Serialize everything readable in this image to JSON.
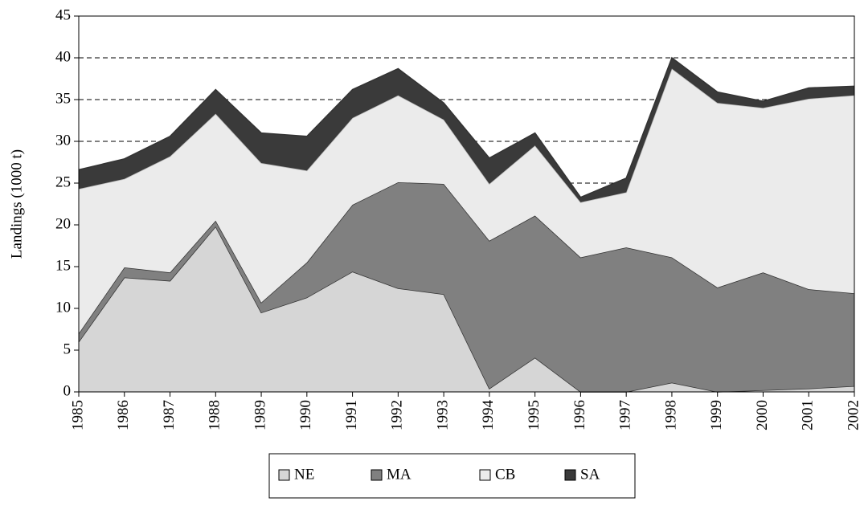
{
  "chart_data": {
    "type": "stacked_area",
    "y_axis_label": "Landings (1000 t)",
    "categories": [
      "1985",
      "1986",
      "1987",
      "1988",
      "1989",
      "1990",
      "1991",
      "1992",
      "1993",
      "1994",
      "1995",
      "1996",
      "1997",
      "1998",
      "1999",
      "2000",
      "2001",
      "2002"
    ],
    "series": [
      {
        "name": "NE",
        "color": "#d6d6d6",
        "values": [
          6.0,
          13.7,
          13.3,
          19.8,
          9.5,
          11.3,
          14.4,
          12.4,
          11.7,
          0.4,
          4.1,
          0,
          0,
          1.1,
          0,
          0.2,
          0.4,
          0.7
        ]
      },
      {
        "name": "MA",
        "color": "#808080",
        "values": [
          1.0,
          1.2,
          1.0,
          0.7,
          1.2,
          4.2,
          8.0,
          12.7,
          13.2,
          17.7,
          17.0,
          16.1,
          17.3,
          15.0,
          12.5,
          14.1,
          11.9,
          11.1
        ]
      },
      {
        "name": "CB",
        "color": "#ebebeb",
        "values": [
          17.3,
          10.6,
          13.9,
          12.8,
          16.7,
          11.0,
          10.4,
          10.4,
          7.7,
          6.8,
          8.4,
          6.6,
          6.6,
          22.6,
          22.1,
          19.7,
          22.8,
          23.7
        ]
      },
      {
        "name": "SA",
        "color": "#3a3a3a",
        "values": [
          2.3,
          2.4,
          2.4,
          2.9,
          3.6,
          4.1,
          3.4,
          3.2,
          2.0,
          3.1,
          1.5,
          0.6,
          1.7,
          1.3,
          1.3,
          0.8,
          1.3,
          1.1
        ]
      }
    ],
    "ylim": [
      0,
      45
    ],
    "yticks": [
      0,
      5,
      10,
      15,
      20,
      25,
      30,
      35,
      40,
      45
    ],
    "grid": true,
    "legend": "bottom"
  }
}
